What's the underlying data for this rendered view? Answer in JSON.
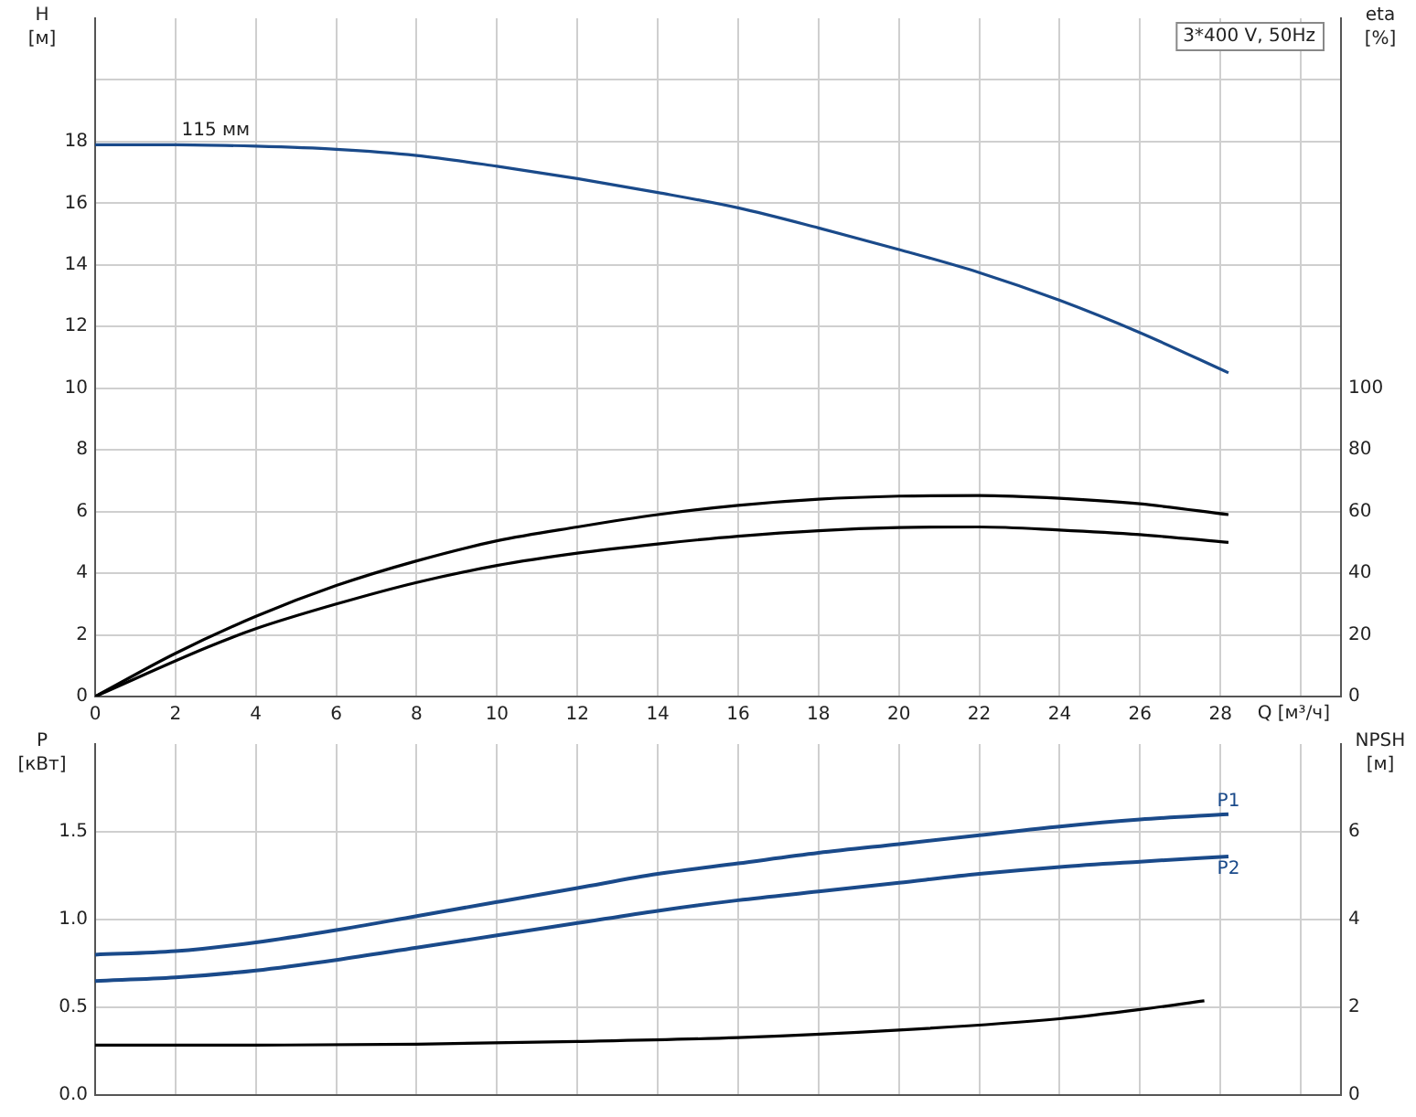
{
  "chart_data": [
    {
      "type": "line",
      "title": "3*400 V, 50Hz",
      "xlabel": "Q [м³/ч]",
      "ylabel": "H [м]",
      "y2label": "eta [%]",
      "xlim": [
        0,
        31
      ],
      "xticks": [
        0,
        2,
        4,
        6,
        8,
        10,
        12,
        14,
        16,
        18,
        20,
        22,
        24,
        26,
        28,
        {
          "value": 30,
          "label": null
        }
      ],
      "ylim": [
        0,
        22
      ],
      "yticks": [
        0,
        2,
        4,
        6,
        8,
        10,
        12,
        14,
        16,
        18,
        {
          "value": 20,
          "label": null
        }
      ],
      "y2lim": [
        0,
        220
      ],
      "y2ticks": [
        0,
        20,
        40,
        60,
        80,
        100
      ],
      "grid": true,
      "legend": false,
      "marker": "none",
      "line_style": "solid",
      "annotations": [
        {
          "text": "115 мм",
          "x": 3,
          "y": 18
        }
      ],
      "series": [
        {
          "color": "#1a4a8a",
          "x": [
            0,
            2,
            4,
            6,
            8,
            10,
            12,
            14,
            16,
            18,
            20,
            22,
            24,
            26,
            28.2
          ],
          "values": [
            17.9,
            17.9,
            17.85,
            17.75,
            17.55,
            17.2,
            16.8,
            16.35,
            15.85,
            15.2,
            14.5,
            13.75,
            12.85,
            11.8,
            10.5
          ]
        },
        {
          "color": "#000000",
          "axis": "y2",
          "x": [
            0,
            2,
            4,
            6,
            8,
            10,
            12,
            14,
            16,
            18,
            20,
            22,
            24,
            26,
            28.2
          ],
          "values": [
            0,
            14,
            26,
            36,
            44,
            50.5,
            55,
            59,
            62,
            64,
            65,
            65.2,
            64.3,
            62.5,
            59
          ]
        },
        {
          "color": "#000000",
          "axis": "y2",
          "x": [
            0,
            2.8,
            4,
            6,
            8,
            10,
            12,
            14,
            16,
            18,
            20,
            22,
            24,
            26,
            28.2
          ],
          "values": [
            0,
            16,
            22,
            30,
            37,
            42.5,
            46.5,
            49.5,
            52,
            53.8,
            54.8,
            55,
            54,
            52.5,
            50
          ]
        }
      ]
    },
    {
      "type": "line",
      "ylabel": "P [кВт]",
      "y2label": "NPSH [м]",
      "tick_labels": "y",
      "xlim": [
        0,
        31
      ],
      "xticks": [
        0,
        2,
        4,
        6,
        8,
        10,
        12,
        14,
        16,
        18,
        20,
        22,
        24,
        26,
        28,
        30
      ],
      "ylim": [
        0,
        2.0
      ],
      "yticks": [
        {
          "value": 0,
          "label": "0.0"
        },
        0.5,
        {
          "value": 1,
          "label": "1.0"
        },
        1.5
      ],
      "y2lim": [
        0,
        8
      ],
      "y2ticks": [
        0,
        2,
        4,
        6
      ],
      "grid": true,
      "legend": false,
      "marker": "none",
      "line_style": "solid",
      "series": [
        {
          "name": "P1",
          "color": "#1a4a8a",
          "x": [
            0,
            2,
            4,
            6,
            8,
            10,
            12,
            14,
            16,
            18,
            20,
            22,
            24,
            26,
            28.2
          ],
          "values": [
            0.8,
            0.82,
            0.87,
            0.94,
            1.02,
            1.1,
            1.18,
            1.26,
            1.32,
            1.38,
            1.43,
            1.48,
            1.53,
            1.57,
            1.6
          ]
        },
        {
          "name": "P2",
          "color": "#1a4a8a",
          "x": [
            0,
            2,
            4,
            6,
            8,
            10,
            12,
            14,
            16,
            18,
            20,
            22,
            24,
            26,
            28.2
          ],
          "values": [
            0.65,
            0.67,
            0.71,
            0.77,
            0.84,
            0.91,
            0.98,
            1.05,
            1.11,
            1.16,
            1.21,
            1.26,
            1.3,
            1.33,
            1.36
          ]
        },
        {
          "color": "#000000",
          "axis": "y2",
          "x": [
            0,
            4,
            8,
            12,
            16,
            20,
            24,
            26,
            27.6
          ],
          "values": [
            1.14,
            1.14,
            1.16,
            1.22,
            1.31,
            1.48,
            1.74,
            1.95,
            2.15
          ]
        }
      ]
    }
  ]
}
